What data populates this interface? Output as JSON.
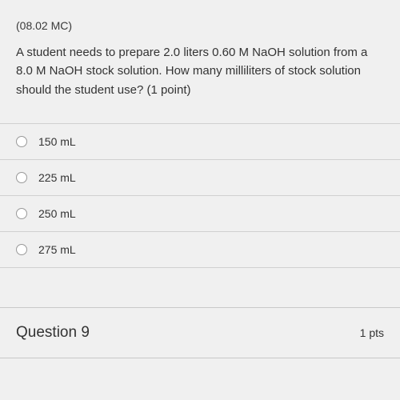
{
  "question": {
    "code": "(08.02 MC)",
    "text": "A student needs to prepare 2.0 liters 0.60 M NaOH solution from a 8.0 M NaOH stock solution. How many milliliters of stock solution should the student use? (1 point)",
    "options": [
      {
        "label": "150 mL"
      },
      {
        "label": "225 mL"
      },
      {
        "label": "250 mL"
      },
      {
        "label": "275 mL"
      }
    ]
  },
  "nextQuestion": {
    "title": "Question 9",
    "points": "1 pts"
  },
  "styling": {
    "background_color": "#d4d4d4",
    "panel_color": "#f0f0f0",
    "text_color": "#333333",
    "border_color": "#d0d0d0",
    "radio_border": "#999999",
    "question_code_fontsize": 14,
    "question_text_fontsize": 15,
    "option_fontsize": 14,
    "next_title_fontsize": 19,
    "next_pts_fontsize": 14
  }
}
